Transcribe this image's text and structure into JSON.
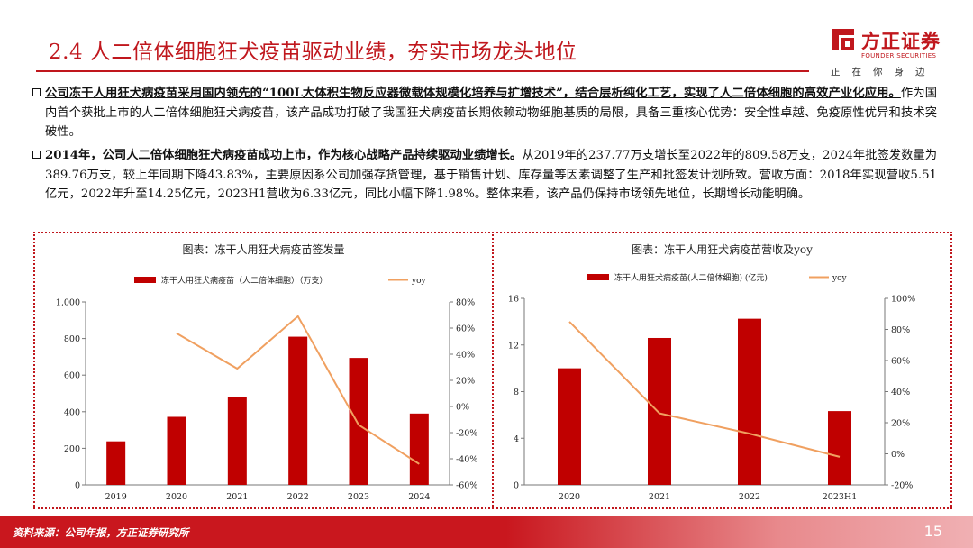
{
  "slide": {
    "title": "2.4 人二倍体细胞狂犬疫苗驱动业绩，夯实市场龙头地位",
    "page_number": "15",
    "source": "资料来源：公司年报，方正证券研究所"
  },
  "logo": {
    "name_cn": "方正证券",
    "name_en": "FOUNDER SECURITIES",
    "slogan": "正在你身边"
  },
  "paragraph1": {
    "lead": "公司冻干人用狂犬病疫苗采用国内领先的“100L大体积生物反应器微载体规模化培养与扩增技术”，结合层析纯化工艺，实现了人二倍体细胞的高效产业化应用。",
    "rest": "作为国内首个获批上市的人二倍体细胞狂犬病疫苗，该产品成功打破了我国狂犬病疫苗长期依赖动物细胞基质的局限，具备三重核心优势：安全性卓越、免疫原性优异和技术突破性。"
  },
  "paragraph2": {
    "lead": "2014年，公司人二倍体细胞狂犬病疫苗成功上市，作为核心战略产品持续驱动业绩增长。",
    "rest": "从2019年的237.77万支增长至2022年的809.58万支，2024年批签发数量为389.76万支，较上年同期下降43.83%，主要原因系公司加强存货管理，基于销售计划、库存量等因素调整了生产和批签发计划所致。营收方面：2018年实现营收5.51亿元，2022年升至14.25亿元，2023H1营收为6.33亿元，同比小幅下降1.98%。整体来看，该产品仍保持市场领先地位，长期增长动能明确。"
  },
  "colors": {
    "bar": "#c00000",
    "line": "#f0a060",
    "accent": "#c0171d"
  },
  "chart_data": [
    {
      "type": "bar",
      "title": "图表：冻干人用狂犬病疫苗签发量",
      "categories": [
        "2019",
        "2020",
        "2021",
        "2022",
        "2023",
        "2024"
      ],
      "series": [
        {
          "name": "冻干人用狂犬病疫苗（人二倍体细胞）（万支）",
          "kind": "bar",
          "axis": "left",
          "values": [
            238,
            372,
            478,
            810,
            694,
            390
          ]
        },
        {
          "name": "yoy",
          "kind": "line",
          "axis": "right",
          "values": [
            null,
            0.56,
            0.29,
            0.69,
            -0.14,
            -0.44
          ]
        }
      ],
      "ylim": [
        0,
        1000
      ],
      "yticks": [
        0,
        200,
        400,
        600,
        800,
        1000
      ],
      "ytick_labels": [
        "0",
        "200",
        "400",
        "600",
        "800",
        "1,000"
      ],
      "y2lim": [
        -0.6,
        0.8
      ],
      "y2ticks": [
        -0.6,
        -0.4,
        -0.2,
        0,
        0.2,
        0.4,
        0.6,
        0.8
      ],
      "y2tick_labels": [
        "-60%",
        "-40%",
        "-20%",
        "0%",
        "20%",
        "40%",
        "60%",
        "80%"
      ],
      "legend": "top"
    },
    {
      "type": "bar",
      "title": "图表：冻干人用狂犬病疫苗营收及yoy",
      "categories": [
        "2020",
        "2021",
        "2022",
        "2023H1"
      ],
      "series": [
        {
          "name": "冻干人用狂犬病疫苗(人二倍体细胞) (亿元)",
          "kind": "bar",
          "axis": "left",
          "values": [
            10.0,
            12.6,
            14.25,
            6.33
          ]
        },
        {
          "name": "yoy",
          "kind": "line",
          "axis": "right",
          "values": [
            0.85,
            0.26,
            0.13,
            -0.02
          ]
        }
      ],
      "ylim": [
        0,
        16
      ],
      "yticks": [
        0,
        4,
        8,
        12,
        16
      ],
      "ytick_labels": [
        "0",
        "4",
        "8",
        "12",
        "16"
      ],
      "y2lim": [
        -0.2,
        1.0
      ],
      "y2ticks": [
        -0.2,
        0,
        0.2,
        0.4,
        0.6,
        0.8,
        1.0
      ],
      "y2tick_labels": [
        "-20%",
        "0%",
        "20%",
        "40%",
        "60%",
        "80%",
        "100%"
      ],
      "legend": "top"
    }
  ]
}
